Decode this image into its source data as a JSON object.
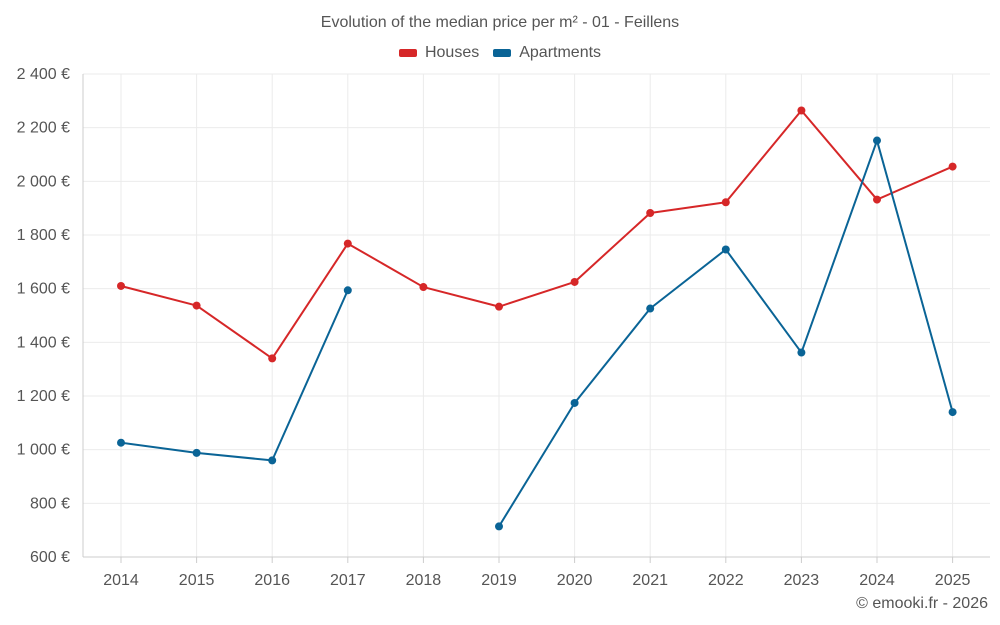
{
  "chart_data": {
    "type": "line",
    "title": "Evolution of the median price per m² - 01 - Feillens",
    "xlabel": "",
    "ylabel": "",
    "categories": [
      "2014",
      "2015",
      "2016",
      "2017",
      "2018",
      "2019",
      "2020",
      "2021",
      "2022",
      "2023",
      "2024",
      "2025"
    ],
    "ylim": [
      600,
      2400
    ],
    "yticks": [
      600,
      800,
      1000,
      1200,
      1400,
      1600,
      1800,
      2000,
      2200,
      2400
    ],
    "ytick_labels": [
      "600 €",
      "800 €",
      "1 000 €",
      "1 200 €",
      "1 400 €",
      "1 600 €",
      "1 800 €",
      "2 000 €",
      "2 200 €",
      "2 400 €"
    ],
    "grid": true,
    "legend_position": "top-center",
    "series": [
      {
        "name": "Houses",
        "color": "#d62728",
        "values": [
          1610,
          1537,
          1340,
          1768,
          1606,
          1533,
          1625,
          1882,
          1922,
          2264,
          1932,
          2055
        ]
      },
      {
        "name": "Apartments",
        "color": "#0a6496",
        "values": [
          1026,
          988,
          960,
          1594,
          null,
          714,
          1174,
          1526,
          1746,
          1362,
          2152,
          1140
        ]
      }
    ]
  },
  "credit": "© emooki.fr - 2026"
}
